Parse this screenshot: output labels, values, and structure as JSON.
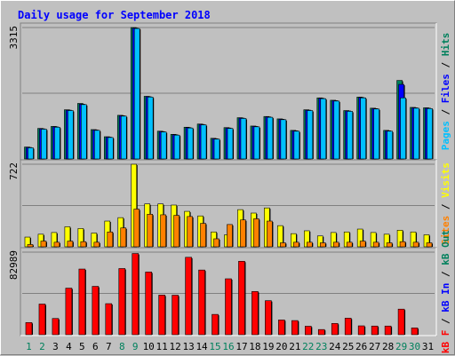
{
  "title": "Daily usage for September 2018",
  "colors": {
    "background": "#C0C0C0",
    "panel": "#C0C0C0",
    "title": "#0000FF",
    "grid": "#808080",
    "hits": "#00805C",
    "files": "#0000FF",
    "pages": "#00C0FF",
    "visits": "#FFFF00",
    "sites": "#FF8000",
    "kbin": "#0000FF",
    "kbout": "#00805C",
    "kbf": "#FF0000",
    "bar_edge": "#000000",
    "weekday": "#000000",
    "weekend": "#00805C"
  },
  "days": [
    "1",
    "2",
    "3",
    "4",
    "5",
    "6",
    "7",
    "8",
    "9",
    "10",
    "11",
    "12",
    "13",
    "14",
    "15",
    "16",
    "17",
    "18",
    "19",
    "20",
    "21",
    "22",
    "23",
    "24",
    "25",
    "26",
    "27",
    "28",
    "29",
    "30",
    "31"
  ],
  "weekend_days": [
    1,
    2,
    8,
    9,
    15,
    16,
    22,
    23,
    29,
    30
  ],
  "panels": [
    {
      "id": "hits",
      "max_label": "3315",
      "side_legend": [
        {
          "text": "Pages",
          "color_key": "pages"
        },
        {
          "text": " / ",
          "color_key": "bar_edge"
        },
        {
          "text": "Files",
          "color_key": "files"
        },
        {
          "text": " / ",
          "color_key": "bar_edge"
        },
        {
          "text": "Hits",
          "color_key": "hits"
        }
      ]
    },
    {
      "id": "visits",
      "max_label": "722",
      "side_legend": [
        {
          "text": "Sites",
          "color_key": "sites"
        },
        {
          "text": " / ",
          "color_key": "bar_edge"
        },
        {
          "text": "Visits",
          "color_key": "visits"
        }
      ]
    },
    {
      "id": "kbytes",
      "max_label": "82989",
      "side_legend": [
        {
          "text": "kB F",
          "color_key": "kbf"
        },
        {
          "text": " / ",
          "color_key": "bar_edge"
        },
        {
          "text": "kB In",
          "color_key": "kbin"
        },
        {
          "text": " / ",
          "color_key": "bar_edge"
        },
        {
          "text": "kB Out",
          "color_key": "kbout"
        }
      ]
    }
  ],
  "chart_data": [
    {
      "type": "bar",
      "categories": [
        "1",
        "2",
        "3",
        "4",
        "5",
        "6",
        "7",
        "8",
        "9",
        "10",
        "11",
        "12",
        "13",
        "14",
        "15",
        "16",
        "17",
        "18",
        "19",
        "20",
        "21",
        "22",
        "23",
        "24",
        "25",
        "26",
        "27",
        "28",
        "29",
        "30",
        "31"
      ],
      "ylim": [
        0,
        3315
      ],
      "grid": true,
      "series": [
        {
          "name": "Hits",
          "color_key": "hits",
          "values": [
            300,
            770,
            820,
            1240,
            1400,
            740,
            560,
            1100,
            3315,
            1580,
            700,
            620,
            800,
            880,
            520,
            790,
            1040,
            830,
            1070,
            1010,
            720,
            1240,
            1540,
            1480,
            1220,
            1560,
            1280,
            720,
            1980,
            1300,
            1290
          ]
        },
        {
          "name": "Files",
          "color_key": "files",
          "values": [
            290,
            760,
            810,
            1230,
            1380,
            730,
            550,
            1090,
            3300,
            1570,
            690,
            610,
            790,
            870,
            510,
            780,
            1030,
            820,
            1060,
            1000,
            710,
            1230,
            1530,
            1470,
            1210,
            1550,
            1270,
            710,
            1880,
            1290,
            1280
          ]
        },
        {
          "name": "Pages",
          "color_key": "pages",
          "values": [
            280,
            750,
            800,
            1220,
            1370,
            720,
            540,
            1080,
            3290,
            1560,
            680,
            600,
            780,
            860,
            500,
            770,
            1020,
            810,
            1050,
            990,
            700,
            1220,
            1520,
            1460,
            1200,
            1540,
            1260,
            700,
            1540,
            1280,
            1270
          ]
        }
      ]
    },
    {
      "type": "bar",
      "categories": [
        "1",
        "2",
        "3",
        "4",
        "5",
        "6",
        "7",
        "8",
        "9",
        "10",
        "11",
        "12",
        "13",
        "14",
        "15",
        "16",
        "17",
        "18",
        "19",
        "20",
        "21",
        "22",
        "23",
        "24",
        "25",
        "26",
        "27",
        "28",
        "29",
        "30",
        "31"
      ],
      "ylim": [
        0,
        722
      ],
      "grid": true,
      "series": [
        {
          "name": "Visits",
          "color_key": "visits",
          "values": [
            85,
            110,
            125,
            175,
            160,
            120,
            225,
            255,
            722,
            375,
            375,
            365,
            310,
            270,
            130,
            105,
            325,
            295,
            340,
            185,
            115,
            140,
            95,
            125,
            130,
            155,
            125,
            110,
            145,
            130,
            105
          ]
        },
        {
          "name": "Sites",
          "color_key": "sites",
          "values": [
            20,
            50,
            40,
            50,
            45,
            40,
            130,
            165,
            330,
            285,
            280,
            275,
            265,
            205,
            70,
            195,
            235,
            245,
            225,
            35,
            40,
            40,
            35,
            40,
            40,
            50,
            40,
            35,
            45,
            40,
            35
          ]
        }
      ]
    },
    {
      "type": "bar",
      "categories": [
        "1",
        "2",
        "3",
        "4",
        "5",
        "6",
        "7",
        "8",
        "9",
        "10",
        "11",
        "12",
        "13",
        "14",
        "15",
        "16",
        "17",
        "18",
        "19",
        "20",
        "21",
        "22",
        "23",
        "24",
        "25",
        "26",
        "27",
        "28",
        "29",
        "30",
        "31"
      ],
      "ylim": [
        0,
        82989
      ],
      "grid": true,
      "series": [
        {
          "name": "kB F",
          "color_key": "kbf",
          "values": [
            12200,
            30800,
            16300,
            46800,
            66000,
            48600,
            31200,
            66500,
            81600,
            63000,
            39800,
            39700,
            77800,
            65000,
            20400,
            56200,
            73800,
            43400,
            34200,
            14800,
            14200,
            8500,
            5200,
            11300,
            16600,
            8900,
            8700,
            8700,
            25700,
            6800,
            0
          ]
        }
      ]
    }
  ]
}
